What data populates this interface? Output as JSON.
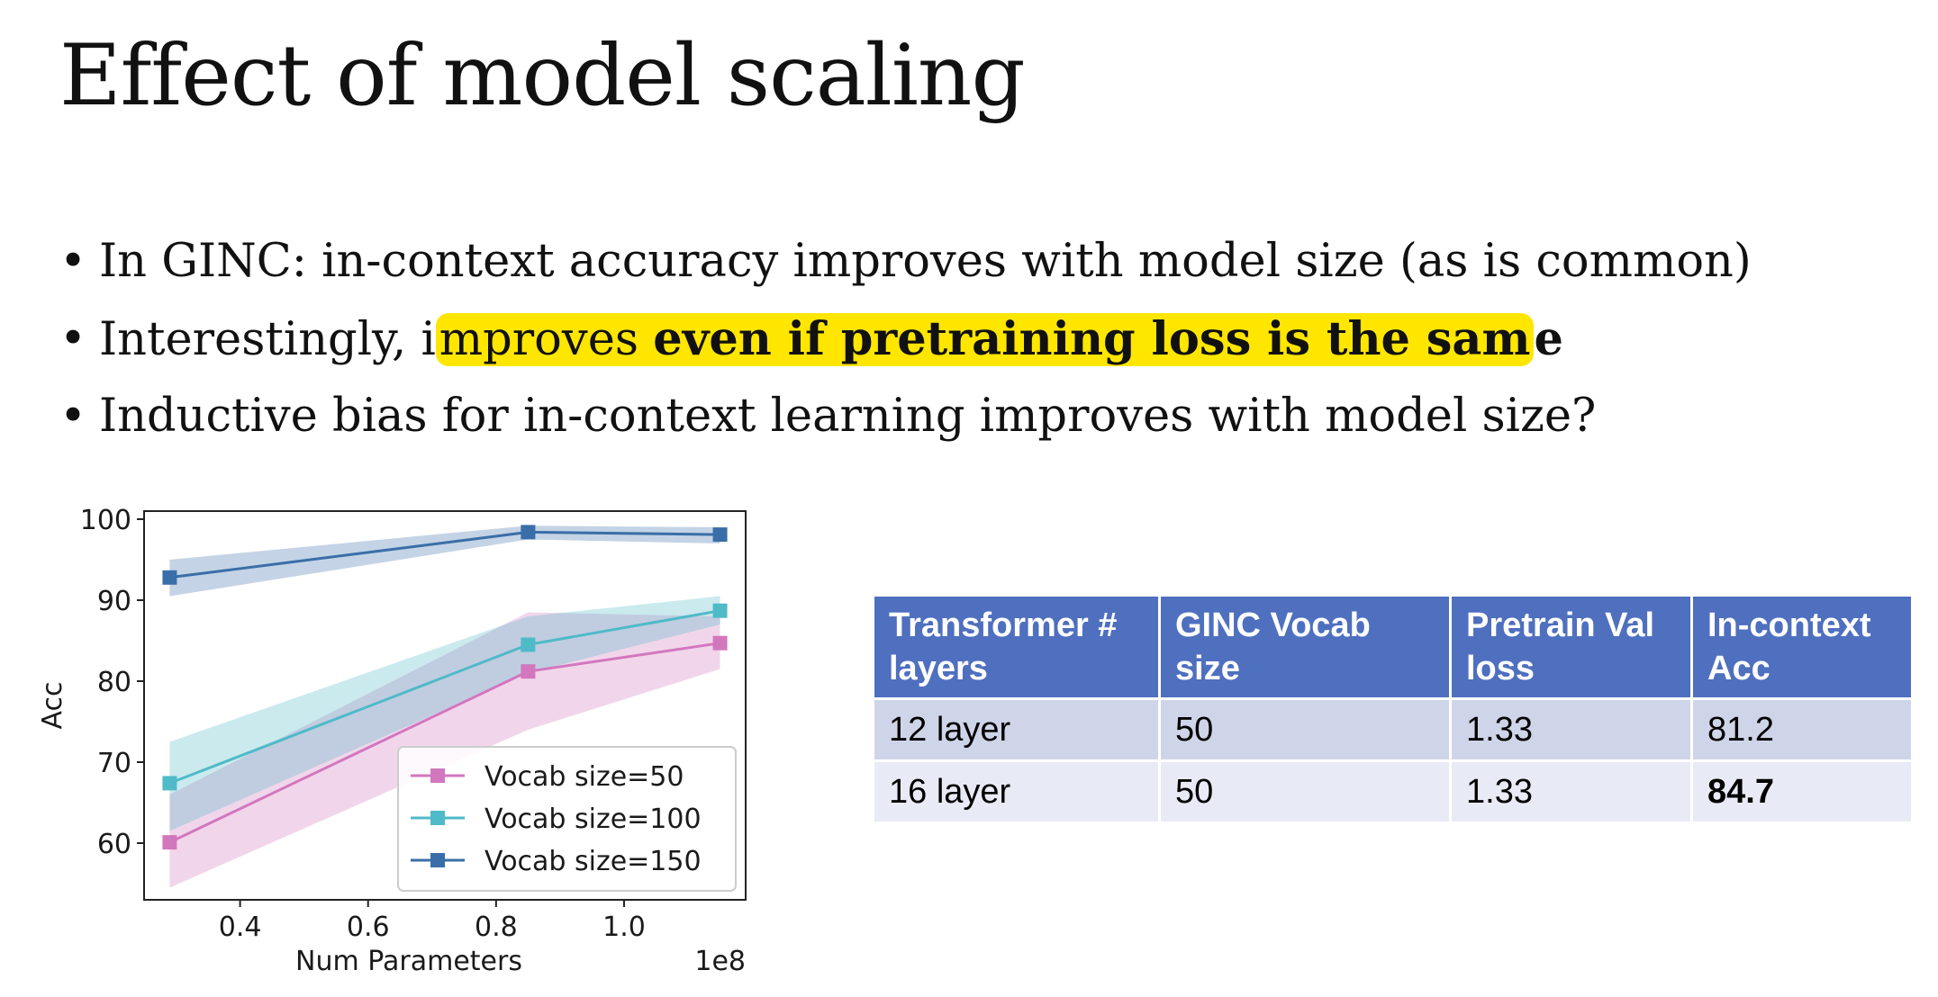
{
  "title": "Effect of model scaling",
  "bullets": [
    {
      "text": "In GINC: in-context accuracy improves with model size (as is common)"
    },
    {
      "pre": "Interestingly, i",
      "hl_plain": "mproves ",
      "hl_bold": "even if pretraining loss is the sam",
      "post_bold": "e"
    },
    {
      "text": "Inductive bias for in-context learning improves with model size?"
    }
  ],
  "chart_data": {
    "type": "line",
    "x": [
      0.29,
      0.85,
      1.15
    ],
    "x_offset_label": "1e8",
    "series": [
      {
        "name": "Vocab size=50",
        "color": "#d277be",
        "values": [
          60.1,
          81.2,
          84.7
        ],
        "lower": [
          54.5,
          74.0,
          81.5
        ],
        "upper": [
          66.0,
          88.5,
          88.0
        ]
      },
      {
        "name": "Vocab size=100",
        "color": "#4fbac8",
        "values": [
          67.4,
          84.5,
          88.7
        ],
        "lower": [
          61.5,
          81.0,
          87.0
        ],
        "upper": [
          72.5,
          88.0,
          90.5
        ]
      },
      {
        "name": "Vocab size=150",
        "color": "#3a6ea8",
        "values": [
          92.8,
          98.4,
          98.1
        ],
        "lower": [
          90.5,
          97.5,
          97.0
        ],
        "upper": [
          95.0,
          99.2,
          99.0
        ]
      }
    ],
    "xlabel": "Num Parameters",
    "ylabel": "Acc",
    "xlim": [
      0.25,
      1.19
    ],
    "ylim": [
      53.0,
      101.0
    ],
    "xticks": [
      "0.4",
      "0.6",
      "0.8",
      "1.0"
    ],
    "xtick_values": [
      0.4,
      0.6,
      0.8,
      1.0
    ],
    "yticks": [
      "60",
      "70",
      "80",
      "90",
      "100"
    ],
    "ytick_values": [
      60,
      70,
      80,
      90,
      100
    ],
    "legend_position": "lower-right"
  },
  "table": {
    "headers": [
      "Transformer # layers",
      "GINC Vocab size",
      "Pretrain Val loss",
      "In-context Acc"
    ],
    "header_lines": [
      [
        "Transformer #",
        "layers"
      ],
      [
        "GINC Vocab",
        "size"
      ],
      [
        "Pretrain Val",
        "loss"
      ],
      [
        "In-context",
        "Acc"
      ]
    ],
    "rows": [
      [
        "12 layer",
        "50",
        "1.33",
        "81.2"
      ],
      [
        "16 layer",
        "50",
        "1.33",
        "84.7"
      ]
    ]
  }
}
